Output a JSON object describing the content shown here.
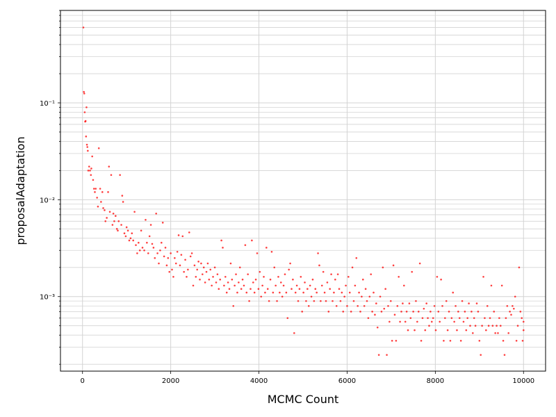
{
  "chart_data": {
    "type": "scatter",
    "title": "",
    "xlabel": "MCMC Count",
    "ylabel": "proposalAdaptation",
    "xlim": [
      -500,
      10500
    ],
    "ylim": [
      0.00017,
      0.9
    ],
    "yscale": "log",
    "grid": true,
    "legend": "none",
    "marker_color": "#ff0000",
    "xticks": [
      {
        "value": 0,
        "label": "0"
      },
      {
        "value": 2000,
        "label": "2000"
      },
      {
        "value": 4000,
        "label": "4000"
      },
      {
        "value": 6000,
        "label": "6000"
      },
      {
        "value": 8000,
        "label": "8000"
      },
      {
        "value": 10000,
        "label": "10000"
      }
    ],
    "yticks": [
      {
        "value": 0.001,
        "label": "10⁻³"
      },
      {
        "value": 0.01,
        "label": "10⁻²"
      },
      {
        "value": 0.1,
        "label": "10⁻¹"
      }
    ],
    "points": [
      [
        20,
        0.6
      ],
      [
        30,
        0.13
      ],
      [
        40,
        0.125
      ],
      [
        50,
        0.08
      ],
      [
        60,
        0.064
      ],
      [
        70,
        0.065
      ],
      [
        80,
        0.045
      ],
      [
        90,
        0.09
      ],
      [
        100,
        0.037
      ],
      [
        110,
        0.035
      ],
      [
        120,
        0.032
      ],
      [
        130,
        0.02
      ],
      [
        150,
        0.022
      ],
      [
        170,
        0.02
      ],
      [
        190,
        0.018
      ],
      [
        200,
        0.021
      ],
      [
        220,
        0.028
      ],
      [
        240,
        0.016
      ],
      [
        260,
        0.013
      ],
      [
        280,
        0.012
      ],
      [
        300,
        0.013
      ],
      [
        330,
        0.0105
      ],
      [
        350,
        0.0085
      ],
      [
        370,
        0.034
      ],
      [
        400,
        0.013
      ],
      [
        420,
        0.0095
      ],
      [
        450,
        0.012
      ],
      [
        470,
        0.0082
      ],
      [
        500,
        0.0078
      ],
      [
        520,
        0.006
      ],
      [
        550,
        0.0065
      ],
      [
        580,
        0.012
      ],
      [
        600,
        0.022
      ],
      [
        620,
        0.0075
      ],
      [
        650,
        0.018
      ],
      [
        680,
        0.0055
      ],
      [
        700,
        0.0072
      ],
      [
        720,
        0.006
      ],
      [
        750,
        0.0068
      ],
      [
        780,
        0.005
      ],
      [
        800,
        0.0048
      ],
      [
        820,
        0.006
      ],
      [
        850,
        0.018
      ],
      [
        880,
        0.0055
      ],
      [
        900,
        0.011
      ],
      [
        920,
        0.0095
      ],
      [
        950,
        0.0045
      ],
      [
        980,
        0.0042
      ],
      [
        1000,
        0.0052
      ],
      [
        1030,
        0.0048
      ],
      [
        1060,
        0.0038
      ],
      [
        1090,
        0.004
      ],
      [
        1120,
        0.0045
      ],
      [
        1150,
        0.0038
      ],
      [
        1180,
        0.0075
      ],
      [
        1210,
        0.0034
      ],
      [
        1240,
        0.0028
      ],
      [
        1270,
        0.0036
      ],
      [
        1300,
        0.003
      ],
      [
        1330,
        0.0048
      ],
      [
        1360,
        0.0032
      ],
      [
        1400,
        0.003
      ],
      [
        1430,
        0.0062
      ],
      [
        1460,
        0.0036
      ],
      [
        1490,
        0.0028
      ],
      [
        1520,
        0.0042
      ],
      [
        1550,
        0.0055
      ],
      [
        1580,
        0.0035
      ],
      [
        1610,
        0.0032
      ],
      [
        1640,
        0.0025
      ],
      [
        1670,
        0.0072
      ],
      [
        1700,
        0.0028
      ],
      [
        1730,
        0.0022
      ],
      [
        1760,
        0.003
      ],
      [
        1790,
        0.0036
      ],
      [
        1820,
        0.0058
      ],
      [
        1850,
        0.0026
      ],
      [
        1880,
        0.0032
      ],
      [
        1910,
        0.0021
      ],
      [
        1940,
        0.0025
      ],
      [
        1970,
        0.0018
      ],
      [
        2000,
        0.0028
      ],
      [
        2030,
        0.0019
      ],
      [
        2060,
        0.0016
      ],
      [
        2090,
        0.0025
      ],
      [
        2120,
        0.0022
      ],
      [
        2150,
        0.0029
      ],
      [
        2180,
        0.0043
      ],
      [
        2210,
        0.0021
      ],
      [
        2240,
        0.0027
      ],
      [
        2270,
        0.0042
      ],
      [
        2300,
        0.0018
      ],
      [
        2330,
        0.0024
      ],
      [
        2360,
        0.0016
      ],
      [
        2390,
        0.0019
      ],
      [
        2420,
        0.0046
      ],
      [
        2450,
        0.0026
      ],
      [
        2480,
        0.0028
      ],
      [
        2510,
        0.0013
      ],
      [
        2540,
        0.0021
      ],
      [
        2570,
        0.0016
      ],
      [
        2600,
        0.0019
      ],
      [
        2630,
        0.0023
      ],
      [
        2660,
        0.0015
      ],
      [
        2690,
        0.0022
      ],
      [
        2720,
        0.0017
      ],
      [
        2750,
        0.002
      ],
      [
        2780,
        0.0014
      ],
      [
        2810,
        0.0018
      ],
      [
        2840,
        0.0022
      ],
      [
        2870,
        0.0015
      ],
      [
        2900,
        0.0019
      ],
      [
        2930,
        0.0013
      ],
      [
        2960,
        0.0016
      ],
      [
        3000,
        0.002
      ],
      [
        3030,
        0.0014
      ],
      [
        3060,
        0.0017
      ],
      [
        3090,
        0.0012
      ],
      [
        3120,
        0.0015
      ],
      [
        3150,
        0.0038
      ],
      [
        3180,
        0.0032
      ],
      [
        3210,
        0.0013
      ],
      [
        3240,
        0.0016
      ],
      [
        3270,
        0.0011
      ],
      [
        3300,
        0.0014
      ],
      [
        3330,
        0.0012
      ],
      [
        3360,
        0.0022
      ],
      [
        3390,
        0.0015
      ],
      [
        3420,
        0.0008
      ],
      [
        3450,
        0.0013
      ],
      [
        3480,
        0.0017
      ],
      [
        3510,
        0.0011
      ],
      [
        3540,
        0.0014
      ],
      [
        3570,
        0.002
      ],
      [
        3600,
        0.0012
      ],
      [
        3630,
        0.0015
      ],
      [
        3660,
        0.0013
      ],
      [
        3690,
        0.0034
      ],
      [
        3720,
        0.0011
      ],
      [
        3750,
        0.0017
      ],
      [
        3780,
        0.0009
      ],
      [
        3810,
        0.0012
      ],
      [
        3840,
        0.0038
      ],
      [
        3870,
        0.0014
      ],
      [
        3900,
        0.0011
      ],
      [
        3930,
        0.0015
      ],
      [
        3960,
        0.0028
      ],
      [
        3990,
        0.0012
      ],
      [
        4020,
        0.0018
      ],
      [
        4050,
        0.001
      ],
      [
        4080,
        0.0013
      ],
      [
        4110,
        0.0016
      ],
      [
        4140,
        0.0011
      ],
      [
        4170,
        0.0032
      ],
      [
        4200,
        0.0012
      ],
      [
        4230,
        0.0009
      ],
      [
        4260,
        0.0015
      ],
      [
        4290,
        0.0029
      ],
      [
        4320,
        0.0011
      ],
      [
        4350,
        0.002
      ],
      [
        4380,
        0.0013
      ],
      [
        4410,
        0.0009
      ],
      [
        4440,
        0.0016
      ],
      [
        4470,
        0.0011
      ],
      [
        4500,
        0.0014
      ],
      [
        4530,
        0.001
      ],
      [
        4560,
        0.0013
      ],
      [
        4590,
        0.0017
      ],
      [
        4620,
        0.0011
      ],
      [
        4650,
        0.0006
      ],
      [
        4680,
        0.0019
      ],
      [
        4710,
        0.0022
      ],
      [
        4740,
        0.0012
      ],
      [
        4770,
        0.0015
      ],
      [
        4800,
        0.00042
      ],
      [
        4830,
        0.0011
      ],
      [
        4860,
        0.0013
      ],
      [
        4890,
        0.0009
      ],
      [
        4920,
        0.0012
      ],
      [
        4950,
        0.0016
      ],
      [
        4980,
        0.0007
      ],
      [
        5010,
        0.0011
      ],
      [
        5040,
        0.0014
      ],
      [
        5070,
        0.0009
      ],
      [
        5100,
        0.0012
      ],
      [
        5130,
        0.0008
      ],
      [
        5160,
        0.0013
      ],
      [
        5190,
        0.001
      ],
      [
        5220,
        0.0015
      ],
      [
        5250,
        0.0009
      ],
      [
        5280,
        0.0012
      ],
      [
        5310,
        0.0011
      ],
      [
        5340,
        0.0028
      ],
      [
        5370,
        0.0021
      ],
      [
        5400,
        0.0009
      ],
      [
        5430,
        0.0013
      ],
      [
        5460,
        0.0018
      ],
      [
        5490,
        0.0011
      ],
      [
        5520,
        0.0009
      ],
      [
        5550,
        0.0014
      ],
      [
        5580,
        0.0007
      ],
      [
        5610,
        0.0012
      ],
      [
        5640,
        0.0017
      ],
      [
        5670,
        0.0009
      ],
      [
        5700,
        0.0011
      ],
      [
        5730,
        0.0015
      ],
      [
        5760,
        0.0008
      ],
      [
        5790,
        0.0017
      ],
      [
        5820,
        0.0012
      ],
      [
        5850,
        0.0009
      ],
      [
        5880,
        0.0011
      ],
      [
        5910,
        0.0007
      ],
      [
        5940,
        0.001
      ],
      [
        5970,
        0.0013
      ],
      [
        6000,
        0.0008
      ],
      [
        6030,
        0.0016
      ],
      [
        6060,
        0.0011
      ],
      [
        6090,
        0.0007
      ],
      [
        6120,
        0.002
      ],
      [
        6150,
        0.0009
      ],
      [
        6180,
        0.0013
      ],
      [
        6210,
        0.0025
      ],
      [
        6240,
        0.0008
      ],
      [
        6270,
        0.0011
      ],
      [
        6300,
        0.0007
      ],
      [
        6330,
        0.001
      ],
      [
        6360,
        0.0015
      ],
      [
        6390,
        0.0008
      ],
      [
        6420,
        0.0012
      ],
      [
        6450,
        0.0009
      ],
      [
        6480,
        0.0006
      ],
      [
        6510,
        0.001
      ],
      [
        6540,
        0.0017
      ],
      [
        6570,
        0.0007
      ],
      [
        6600,
        0.0011
      ],
      [
        6630,
        0.00065
      ],
      [
        6660,
        0.00085
      ],
      [
        6690,
        0.00048
      ],
      [
        6720,
        0.00025
      ],
      [
        6750,
        0.001
      ],
      [
        6780,
        0.0007
      ],
      [
        6810,
        0.002
      ],
      [
        6840,
        0.00075
      ],
      [
        6870,
        0.0012
      ],
      [
        6900,
        0.00025
      ],
      [
        6930,
        0.0008
      ],
      [
        6960,
        0.00055
      ],
      [
        6990,
        0.0009
      ],
      [
        7020,
        0.00035
      ],
      [
        7050,
        0.0021
      ],
      [
        7080,
        0.00065
      ],
      [
        7110,
        0.00035
      ],
      [
        7140,
        0.0008
      ],
      [
        7170,
        0.0016
      ],
      [
        7200,
        0.00055
      ],
      [
        7230,
        0.0007
      ],
      [
        7260,
        0.00085
      ],
      [
        7290,
        0.0013
      ],
      [
        7320,
        0.00055
      ],
      [
        7350,
        0.0007
      ],
      [
        7380,
        0.00045
      ],
      [
        7410,
        0.00085
      ],
      [
        7440,
        0.0006
      ],
      [
        7470,
        0.0018
      ],
      [
        7500,
        0.0007
      ],
      [
        7530,
        0.00045
      ],
      [
        7560,
        0.0009
      ],
      [
        7590,
        0.00055
      ],
      [
        7620,
        0.0007
      ],
      [
        7650,
        0.0022
      ],
      [
        7680,
        0.00035
      ],
      [
        7710,
        0.0006
      ],
      [
        7740,
        0.00075
      ],
      [
        7770,
        0.00045
      ],
      [
        7800,
        0.00085
      ],
      [
        7830,
        0.0006
      ],
      [
        7860,
        0.0005
      ],
      [
        7890,
        0.0007
      ],
      [
        7920,
        0.00055
      ],
      [
        7950,
        0.0006
      ],
      [
        7980,
        0.0008
      ],
      [
        8010,
        0.00045
      ],
      [
        8040,
        0.0016
      ],
      [
        8070,
        0.0007
      ],
      [
        8100,
        0.00055
      ],
      [
        8130,
        0.0015
      ],
      [
        8160,
        0.0008
      ],
      [
        8190,
        0.00035
      ],
      [
        8220,
        0.0006
      ],
      [
        8250,
        0.0009
      ],
      [
        8280,
        0.00045
      ],
      [
        8310,
        0.0007
      ],
      [
        8340,
        0.00035
      ],
      [
        8370,
        0.0006
      ],
      [
        8400,
        0.0011
      ],
      [
        8430,
        0.00055
      ],
      [
        8460,
        0.0008
      ],
      [
        8490,
        0.00045
      ],
      [
        8520,
        0.0007
      ],
      [
        8550,
        0.0006
      ],
      [
        8580,
        0.00035
      ],
      [
        8610,
        0.0009
      ],
      [
        8640,
        0.00055
      ],
      [
        8670,
        0.0007
      ],
      [
        8700,
        0.00045
      ],
      [
        8730,
        0.0006
      ],
      [
        8760,
        0.00085
      ],
      [
        8790,
        0.0005
      ],
      [
        8820,
        0.0007
      ],
      [
        8850,
        0.00042
      ],
      [
        8880,
        0.0006
      ],
      [
        8910,
        0.0005
      ],
      [
        8940,
        0.00085
      ],
      [
        8970,
        0.0007
      ],
      [
        9000,
        0.00035
      ],
      [
        9030,
        0.00025
      ],
      [
        9060,
        0.0005
      ],
      [
        9090,
        0.0016
      ],
      [
        9120,
        0.0006
      ],
      [
        9150,
        0.00045
      ],
      [
        9180,
        0.0008
      ],
      [
        9210,
        0.0005
      ],
      [
        9240,
        0.0006
      ],
      [
        9270,
        0.0013
      ],
      [
        9300,
        0.0005
      ],
      [
        9330,
        0.0007
      ],
      [
        9360,
        0.00042
      ],
      [
        9390,
        0.0005
      ],
      [
        9420,
        0.00042
      ],
      [
        9450,
        0.0006
      ],
      [
        9480,
        0.0005
      ],
      [
        9510,
        0.0013
      ],
      [
        9540,
        0.00035
      ],
      [
        9570,
        0.00025
      ],
      [
        9600,
        0.0006
      ],
      [
        9630,
        0.0008
      ],
      [
        9660,
        0.00042
      ],
      [
        9690,
        0.0007
      ],
      [
        9720,
        0.00065
      ],
      [
        9750,
        0.0008
      ],
      [
        9780,
        0.00075
      ],
      [
        9810,
        0.001
      ],
      [
        9840,
        0.00035
      ],
      [
        9870,
        0.0005
      ],
      [
        9900,
        0.002
      ],
      [
        9930,
        0.0007
      ],
      [
        9960,
        0.0006
      ],
      [
        10000,
        0.00055
      ],
      [
        9980,
        0.00035
      ],
      [
        10000,
        0.00045
      ]
    ]
  }
}
